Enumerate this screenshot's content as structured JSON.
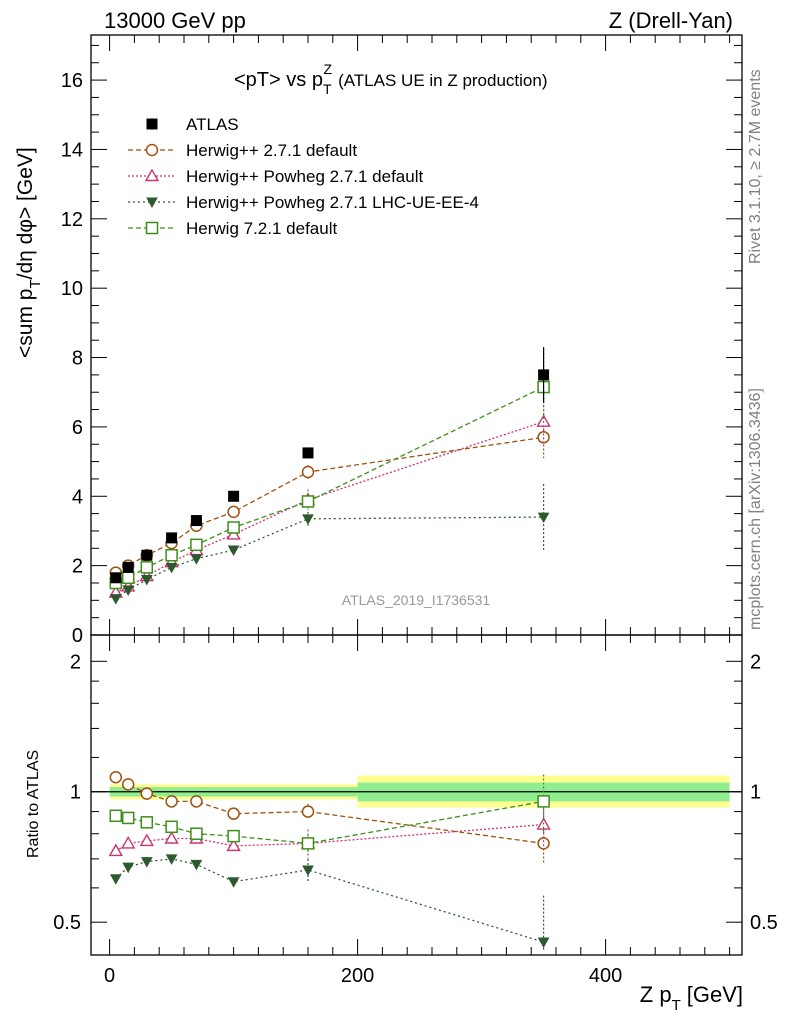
{
  "header": {
    "left": "13000 GeV pp",
    "right": "Z (Drell-Yan)"
  },
  "side": {
    "rivet": "Rivet 3.1.10, ≥ 2.7M events",
    "mcplots": "mcplots.cern.ch [arXiv:1306.3436]"
  },
  "plot_title": {
    "main": "<pT> vs p",
    "sup": "Z",
    "sub": "T",
    "extra": "(ATLAS UE in Z production)"
  },
  "watermark": "ATLAS_2019_I1736531",
  "upper_ylabel": {
    "part1": "<sum p",
    "sub": "T",
    "part2": "/dη dφ> [GeV]"
  },
  "lower_ylabel": "Ratio to ATLAS",
  "xlabel": {
    "main": "Z p",
    "sub": "T",
    "unit": "[GeV]"
  },
  "upper_yticks": [
    "0",
    "2",
    "4",
    "6",
    "8",
    "10",
    "12",
    "14",
    "16"
  ],
  "lower_yticks": [
    "0.5",
    "1",
    "2"
  ],
  "xticks": [
    "0",
    "200",
    "400"
  ],
  "colors": {
    "atlas": "#000000",
    "herwig_default": "#a0520f",
    "herwig_powheg": "#cc3377",
    "herwig_powheg_ee4": "#2d5a2d",
    "herwig7": "#3d8f1a",
    "band_inner": "#90ee90",
    "band_outer": "#ffff90"
  },
  "chart_data": {
    "type": "scatter",
    "x": [
      5,
      15,
      30,
      50,
      70,
      100,
      160,
      350
    ],
    "xlim": [
      -15,
      510
    ],
    "ylim": [
      0,
      17.3
    ],
    "ratio_ylim_log": [
      0.42,
      2.3
    ],
    "legend_position": "top-left",
    "series": [
      {
        "name": "ATLAS",
        "key": "atlas",
        "y": [
          1.65,
          1.95,
          2.3,
          2.8,
          3.3,
          4.0,
          5.25,
          7.5
        ],
        "yerr": [
          0.03,
          0.03,
          0.04,
          0.05,
          0.06,
          0.08,
          0.1,
          0.8
        ],
        "ratio": [
          1,
          1,
          1,
          1,
          1,
          1,
          1,
          1
        ]
      },
      {
        "name": "Herwig++ 2.7.1 default",
        "key": "herwig_default",
        "y": [
          1.8,
          2.0,
          2.3,
          2.65,
          3.15,
          3.55,
          4.7,
          5.7
        ],
        "yerr": [
          0.02,
          0.02,
          0.03,
          0.03,
          0.04,
          0.05,
          0.2,
          0.6
        ],
        "ratio": [
          1.08,
          1.04,
          0.99,
          0.95,
          0.95,
          0.89,
          0.9,
          0.76
        ]
      },
      {
        "name": "Herwig++ Powheg 2.7.1 default",
        "key": "herwig_powheg",
        "y": [
          1.22,
          1.4,
          1.7,
          2.1,
          2.45,
          2.9,
          3.9,
          6.15
        ],
        "yerr": [
          0.02,
          0.02,
          0.03,
          0.03,
          0.04,
          0.05,
          0.3,
          0.7
        ],
        "ratio": [
          0.73,
          0.76,
          0.77,
          0.78,
          0.78,
          0.75,
          0.76,
          0.84
        ]
      },
      {
        "name": "Herwig++ Powheg 2.7.1 LHC-UE-EE-4",
        "key": "herwig_powheg_ee4",
        "y": [
          1.05,
          1.3,
          1.6,
          1.95,
          2.2,
          2.45,
          3.35,
          3.4
        ],
        "yerr": [
          0.02,
          0.02,
          0.03,
          0.03,
          0.04,
          0.05,
          0.2,
          0.95
        ],
        "ratio": [
          0.63,
          0.67,
          0.69,
          0.7,
          0.68,
          0.62,
          0.66,
          0.45
        ]
      },
      {
        "name": "Herwig 7.2.1 default",
        "key": "herwig7",
        "y": [
          1.5,
          1.65,
          1.95,
          2.3,
          2.6,
          3.1,
          3.85,
          7.15
        ],
        "yerr": [
          0.02,
          0.02,
          0.03,
          0.03,
          0.04,
          0.05,
          0.2,
          1.1
        ],
        "ratio": [
          0.88,
          0.87,
          0.85,
          0.83,
          0.8,
          0.79,
          0.76,
          0.95
        ]
      }
    ],
    "ratio_band": [
      {
        "x": [
          0,
          200
        ],
        "inner": [
          0.975,
          1.025
        ],
        "outer": [
          0.96,
          1.04
        ]
      },
      {
        "x": [
          200,
          500
        ],
        "inner": [
          0.95,
          1.05
        ],
        "outer": [
          0.92,
          1.09
        ]
      }
    ]
  }
}
